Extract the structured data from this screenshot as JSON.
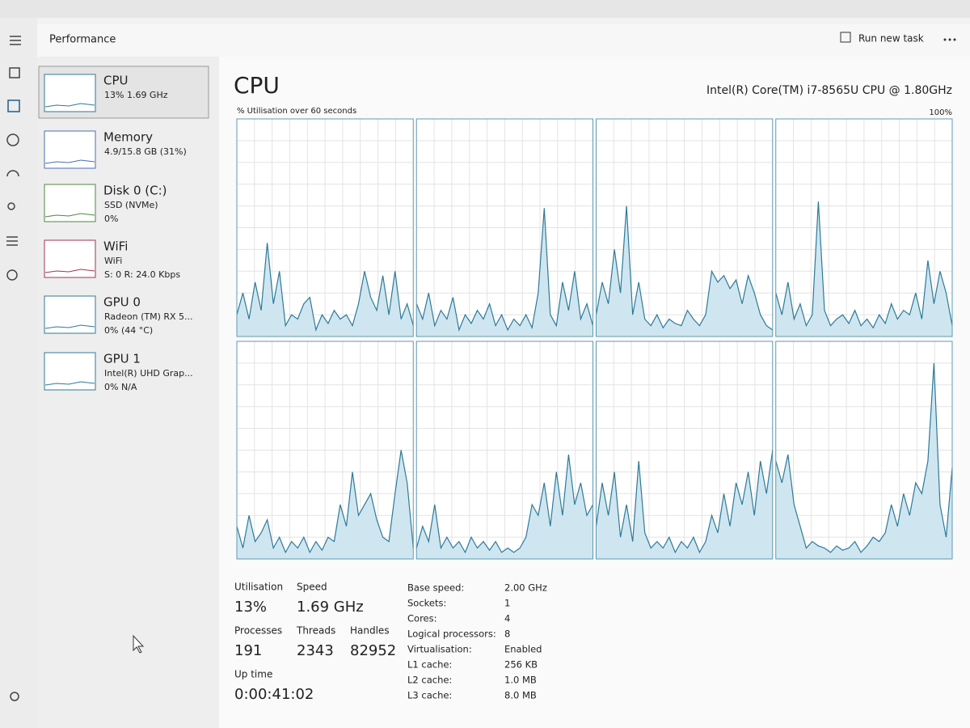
{
  "header": {
    "title": "Performance",
    "run_new_task": "Run new task"
  },
  "sidebar": [
    {
      "name": "CPU",
      "lines": [
        "13% 1.69 GHz"
      ]
    },
    {
      "name": "Memory",
      "lines": [
        "4.9/15.8 GB (31%)"
      ]
    },
    {
      "name": "Disk 0 (C:)",
      "lines": [
        "SSD (NVMe)",
        "0%"
      ]
    },
    {
      "name": "WiFi",
      "lines": [
        "WiFi",
        "S: 0 R: 24.0 Kbps"
      ]
    },
    {
      "name": "GPU 0",
      "lines": [
        "Radeon (TM) RX 5...",
        "0% (44 °C)"
      ]
    },
    {
      "name": "GPU 1",
      "lines": [
        "Intel(R) UHD Grap...",
        "0% N/A"
      ]
    }
  ],
  "main": {
    "title": "CPU",
    "processor": "Intel(R) Core(TM) i7-8565U CPU @ 1.80GHz",
    "graph_label": "% Utilisation over 60 seconds",
    "graph_max": "100%",
    "ylim": [
      0,
      100
    ],
    "cores": [
      [
        10,
        20,
        8,
        25,
        12,
        43,
        15,
        30,
        5,
        10,
        8,
        15,
        18,
        3,
        10,
        6,
        12,
        8,
        10,
        5,
        15,
        30,
        18,
        12,
        28,
        10,
        30,
        8,
        15,
        5
      ],
      [
        15,
        8,
        20,
        5,
        12,
        8,
        18,
        3,
        10,
        6,
        12,
        8,
        15,
        5,
        10,
        3,
        8,
        5,
        10,
        4,
        20,
        59,
        10,
        5,
        25,
        12,
        30,
        8,
        15,
        5
      ],
      [
        10,
        25,
        15,
        40,
        20,
        60,
        10,
        25,
        8,
        5,
        10,
        4,
        8,
        6,
        5,
        12,
        8,
        5,
        10,
        30,
        25,
        28,
        22,
        26,
        15,
        28,
        20,
        10,
        5,
        3
      ],
      [
        20,
        10,
        25,
        8,
        15,
        5,
        10,
        62,
        12,
        5,
        8,
        10,
        6,
        12,
        5,
        8,
        4,
        10,
        6,
        15,
        8,
        12,
        10,
        20,
        8,
        35,
        15,
        30,
        20,
        5
      ],
      [
        15,
        5,
        20,
        8,
        12,
        18,
        5,
        10,
        3,
        8,
        5,
        10,
        3,
        8,
        4,
        10,
        8,
        25,
        15,
        40,
        20,
        25,
        30,
        18,
        10,
        8,
        30,
        50,
        35,
        5
      ],
      [
        5,
        15,
        8,
        25,
        5,
        10,
        5,
        8,
        3,
        10,
        5,
        8,
        4,
        8,
        3,
        5,
        3,
        5,
        10,
        25,
        20,
        35,
        15,
        40,
        20,
        48,
        25,
        35,
        20,
        25
      ],
      [
        15,
        35,
        20,
        40,
        10,
        25,
        8,
        45,
        12,
        5,
        8,
        5,
        10,
        3,
        8,
        5,
        10,
        3,
        8,
        20,
        12,
        30,
        15,
        35,
        25,
        40,
        20,
        45,
        30,
        50
      ],
      [
        45,
        35,
        48,
        25,
        15,
        5,
        8,
        6,
        5,
        3,
        6,
        4,
        5,
        8,
        3,
        6,
        10,
        8,
        12,
        25,
        15,
        30,
        20,
        35,
        30,
        45,
        90,
        25,
        10,
        42
      ]
    ]
  },
  "stats": [
    {
      "label": "Utilisation",
      "value": "13%"
    },
    {
      "label": "Speed",
      "value": "1.69 GHz"
    },
    {
      "label": "Processes",
      "value": "191"
    },
    {
      "label": "Threads",
      "value": "2343"
    },
    {
      "label": "Handles",
      "value": "82952"
    },
    {
      "label": "Up time",
      "value": "0:00:41:02"
    }
  ],
  "specs": [
    {
      "label": "Base speed:",
      "value": "2.00 GHz"
    },
    {
      "label": "Sockets:",
      "value": "1"
    },
    {
      "label": "Cores:",
      "value": "4"
    },
    {
      "label": "Logical processors:",
      "value": "8"
    },
    {
      "label": "Virtualisation:",
      "value": "Enabled"
    },
    {
      "label": "L1 cache:",
      "value": "256 KB"
    },
    {
      "label": "L2 cache:",
      "value": "1.0 MB"
    },
    {
      "label": "L3 cache:",
      "value": "8.0 MB"
    }
  ]
}
